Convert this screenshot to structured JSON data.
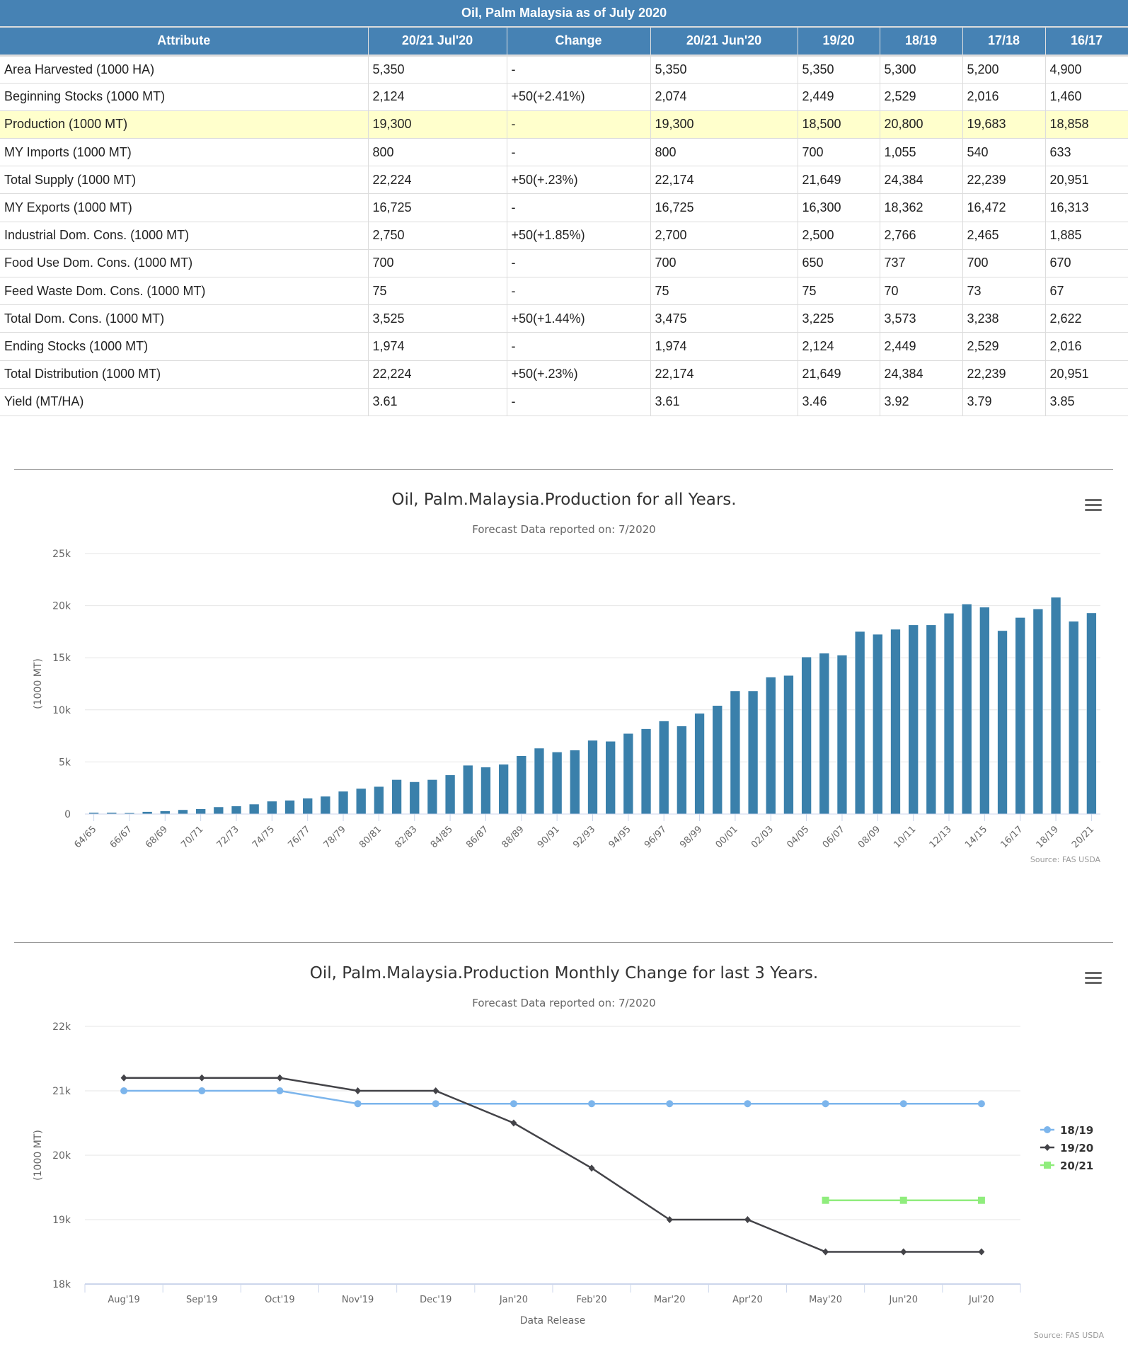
{
  "table": {
    "title": "Oil, Palm Malaysia as of July 2020",
    "columns": [
      "Attribute",
      "20/21 Jul'20",
      "Change",
      "20/21 Jun'20",
      "19/20",
      "18/19",
      "17/18",
      "16/17"
    ],
    "rows": [
      {
        "attribute": "Area Harvested (1000 HA)",
        "jul20": "5,350",
        "change": "-",
        "change_type": "none",
        "jun20": "5,350",
        "y1920": "5,350",
        "y1819": "5,300",
        "y1718": "5,200",
        "y1617": "4,900"
      },
      {
        "attribute": "Beginning Stocks (1000 MT)",
        "jul20": "2,124",
        "change": "+50(+2.41%)",
        "change_type": "pos",
        "jun20": "2,074",
        "y1920": "2,449",
        "y1819": "2,529",
        "y1718": "2,016",
        "y1617": "1,460"
      },
      {
        "attribute": "Production (1000 MT)",
        "jul20": "19,300",
        "change": "-",
        "change_type": "none",
        "jun20": "19,300",
        "y1920": "18,500",
        "y1819": "20,800",
        "y1718": "19,683",
        "y1617": "18,858",
        "highlight": true
      },
      {
        "attribute": "MY Imports (1000 MT)",
        "jul20": "800",
        "change": "-",
        "change_type": "none",
        "jun20": "800",
        "y1920": "700",
        "y1819": "1,055",
        "y1718": "540",
        "y1617": "633"
      },
      {
        "attribute": "Total Supply (1000 MT)",
        "jul20": "22,224",
        "change": "+50(+.23%)",
        "change_type": "pos",
        "jun20": "22,174",
        "y1920": "21,649",
        "y1819": "24,384",
        "y1718": "22,239",
        "y1617": "20,951"
      },
      {
        "attribute": "MY Exports (1000 MT)",
        "jul20": "16,725",
        "change": "-",
        "change_type": "none",
        "jun20": "16,725",
        "y1920": "16,300",
        "y1819": "18,362",
        "y1718": "16,472",
        "y1617": "16,313"
      },
      {
        "attribute": "Industrial Dom. Cons. (1000 MT)",
        "jul20": "2,750",
        "change": "+50(+1.85%)",
        "change_type": "pos",
        "jun20": "2,700",
        "y1920": "2,500",
        "y1819": "2,766",
        "y1718": "2,465",
        "y1617": "1,885"
      },
      {
        "attribute": "Food Use Dom. Cons. (1000 MT)",
        "jul20": "700",
        "change": "-",
        "change_type": "none",
        "jun20": "700",
        "y1920": "650",
        "y1819": "737",
        "y1718": "700",
        "y1617": "670"
      },
      {
        "attribute": "Feed Waste Dom. Cons. (1000 MT)",
        "jul20": "75",
        "change": "-",
        "change_type": "none",
        "jun20": "75",
        "y1920": "75",
        "y1819": "70",
        "y1718": "73",
        "y1617": "67"
      },
      {
        "attribute": "Total Dom. Cons. (1000 MT)",
        "jul20": "3,525",
        "change": "+50(+1.44%)",
        "change_type": "pos",
        "jun20": "3,475",
        "y1920": "3,225",
        "y1819": "3,573",
        "y1718": "3,238",
        "y1617": "2,622"
      },
      {
        "attribute": "Ending Stocks (1000 MT)",
        "jul20": "1,974",
        "change": "-",
        "change_type": "none",
        "jun20": "1,974",
        "y1920": "2,124",
        "y1819": "2,449",
        "y1718": "2,529",
        "y1617": "2,016"
      },
      {
        "attribute": "Total Distribution (1000 MT)",
        "jul20": "22,224",
        "change": "+50(+.23%)",
        "change_type": "pos",
        "jun20": "22,174",
        "y1920": "21,649",
        "y1819": "24,384",
        "y1718": "22,239",
        "y1617": "20,951"
      },
      {
        "attribute": "Yield (MT/HA)",
        "jul20": "3.61",
        "change": "-",
        "change_type": "none",
        "jun20": "3.61",
        "y1920": "3.46",
        "y1819": "3.92",
        "y1718": "3.79",
        "y1617": "3.85"
      }
    ]
  },
  "colors": {
    "header_bg": "#4682b4",
    "highlight_row": "#ffffcc",
    "change_none": "#ff3300",
    "change_pos": "#006400",
    "bar": "#3a80ab",
    "series_1819": "#7cb5ec",
    "series_1920": "#434348",
    "series_2021": "#90ed7d"
  },
  "menu_icon": "hamburger-menu-icon",
  "chart_data": [
    {
      "type": "bar",
      "title": "Oil, Palm.Malaysia.Production for all Years.",
      "subtitle": "Forecast Data reported on: 7/2020",
      "xlabel": "",
      "ylabel": "(1000 MT)",
      "ylim": [
        0,
        25000
      ],
      "yticks": [
        0,
        5000,
        10000,
        15000,
        20000,
        25000
      ],
      "ytick_labels": [
        "0",
        "5k",
        "10k",
        "15k",
        "20k",
        "25k"
      ],
      "grid": true,
      "source": "Source: FAS USDA",
      "categories": [
        "64/65",
        "65/66",
        "66/67",
        "67/68",
        "68/69",
        "69/70",
        "70/71",
        "71/72",
        "72/73",
        "73/74",
        "74/75",
        "75/76",
        "76/77",
        "77/78",
        "78/79",
        "79/80",
        "80/81",
        "81/82",
        "82/83",
        "83/84",
        "84/85",
        "85/86",
        "86/87",
        "87/88",
        "88/89",
        "89/90",
        "90/91",
        "91/92",
        "92/93",
        "93/94",
        "94/95",
        "95/96",
        "96/97",
        "97/98",
        "98/99",
        "99/00",
        "00/01",
        "01/02",
        "02/03",
        "03/04",
        "04/05",
        "05/06",
        "06/07",
        "07/08",
        "08/09",
        "09/10",
        "10/11",
        "11/12",
        "12/13",
        "13/14",
        "14/15",
        "15/16",
        "16/17",
        "17/18",
        "18/19",
        "19/20",
        "20/21"
      ],
      "tick_labels_shown": [
        "64/65",
        "66/67",
        "68/69",
        "70/71",
        "72/73",
        "74/75",
        "76/77",
        "78/79",
        "80/81",
        "82/83",
        "84/85",
        "86/87",
        "88/89",
        "90/91",
        "92/93",
        "94/95",
        "96/97",
        "98/99",
        "00/01",
        "02/03",
        "04/05",
        "06/07",
        "08/09",
        "10/11",
        "12/13",
        "14/15",
        "16/17",
        "18/19",
        "20/21"
      ],
      "values": [
        140,
        140,
        110,
        230,
        300,
        410,
        500,
        680,
        770,
        950,
        1230,
        1320,
        1520,
        1700,
        2180,
        2450,
        2640,
        3300,
        3090,
        3300,
        3750,
        4680,
        4500,
        4770,
        5590,
        6320,
        5950,
        6140,
        7070,
        6980,
        7730,
        8180,
        8930,
        8450,
        9660,
        10410,
        11820,
        11820,
        13140,
        13300,
        15070,
        15430,
        15250,
        17520,
        17250,
        17730,
        18150,
        18150,
        19270,
        20150,
        19850,
        17600,
        18858,
        19683,
        20800,
        18500,
        19300
      ]
    },
    {
      "type": "line",
      "title": "Oil, Palm.Malaysia.Production Monthly Change for last 3 Years.",
      "subtitle": "Forecast Data reported on: 7/2020",
      "xlabel": "Data Release",
      "ylabel": "(1000 MT)",
      "ylim": [
        18000,
        22000
      ],
      "yticks": [
        18000,
        19000,
        20000,
        21000,
        22000
      ],
      "ytick_labels": [
        "18k",
        "19k",
        "20k",
        "21k",
        "22k"
      ],
      "grid": true,
      "legend": "right",
      "source": "Source: FAS USDA",
      "x": [
        "Aug'19",
        "Sep'19",
        "Oct'19",
        "Nov'19",
        "Dec'19",
        "Jan'20",
        "Feb'20",
        "Mar'20",
        "Apr'20",
        "May'20",
        "Jun'20",
        "Jul'20"
      ],
      "series": [
        {
          "name": "18/19",
          "marker": "circle",
          "color": "#7cb5ec",
          "values": [
            21000,
            21000,
            21000,
            20800,
            20800,
            20800,
            20800,
            20800,
            20800,
            20800,
            20800,
            20800
          ]
        },
        {
          "name": "19/20",
          "marker": "diamond",
          "color": "#434348",
          "values": [
            21200,
            21200,
            21200,
            21000,
            21000,
            20500,
            19800,
            19000,
            19000,
            18500,
            18500,
            18500
          ]
        },
        {
          "name": "20/21",
          "marker": "square",
          "color": "#90ed7d",
          "values": [
            null,
            null,
            null,
            null,
            null,
            null,
            null,
            null,
            null,
            19300,
            19300,
            19300
          ]
        }
      ]
    }
  ]
}
